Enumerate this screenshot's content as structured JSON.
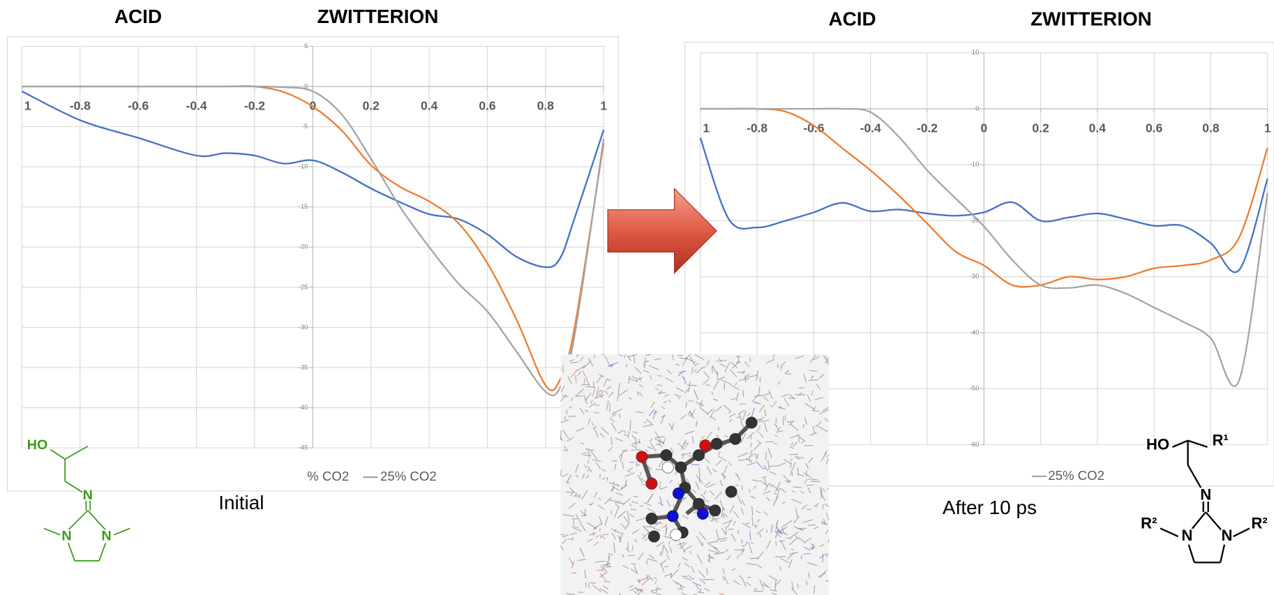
{
  "chart_data": [
    {
      "type": "line",
      "annotations": [
        "ACID",
        "ZWITTERION",
        "Initial"
      ],
      "x": [
        -1,
        -0.8,
        -0.6,
        -0.4,
        -0.3,
        -0.2,
        -0.1,
        0,
        0.1,
        0.2,
        0.3,
        0.4,
        0.5,
        0.6,
        0.7,
        0.8,
        0.85,
        0.9,
        1
      ],
      "series": [
        {
          "color": "#4472c4",
          "values": [
            -0.6,
            -4.2,
            -6.4,
            -8.6,
            -8.3,
            -8.6,
            -9.6,
            -9.2,
            -10.7,
            -12.7,
            -14.4,
            -15.9,
            -16.5,
            -18.4,
            -21.2,
            -22.5,
            -21.4,
            -16.4,
            -5.4
          ]
        },
        {
          "name": "% CO2",
          "color": "#ed7d31",
          "values": [
            0,
            0,
            0,
            0,
            0,
            0,
            -0.7,
            -2.5,
            -5.5,
            -9.8,
            -12.5,
            -14.3,
            -17,
            -22,
            -29,
            -37.2,
            -36.5,
            -30,
            -7
          ]
        },
        {
          "name": "25% CO2",
          "color": "#a5a5a5",
          "values": [
            0,
            0,
            0,
            0,
            0,
            0,
            -0.1,
            -0.6,
            -3.5,
            -9,
            -15,
            -20,
            -24.5,
            -28,
            -33,
            -38,
            -37.5,
            -31,
            -6.5
          ]
        }
      ],
      "xlim": [
        -1,
        1
      ],
      "ylim": [
        -45,
        5
      ],
      "xticks": [
        {
          "value": -1,
          "label": "1"
        },
        -0.8,
        -0.6,
        -0.4,
        -0.2,
        0,
        0.2,
        0.4,
        0.6,
        0.8,
        1
      ],
      "yticks": [
        5,
        0,
        -5,
        -10,
        -15,
        -20,
        -25,
        -30,
        -35,
        -40,
        -45
      ],
      "grid": true
    },
    {
      "type": "line",
      "annotations": [
        "ACID",
        "ZWITTERION",
        "After 10 ps"
      ],
      "x": [
        -1,
        -0.9,
        -0.8,
        -0.7,
        -0.6,
        -0.5,
        -0.4,
        -0.3,
        -0.2,
        -0.1,
        0,
        0.1,
        0.2,
        0.3,
        0.4,
        0.5,
        0.6,
        0.7,
        0.8,
        0.9,
        1
      ],
      "series": [
        {
          "color": "#4472c4",
          "values": [
            -5.2,
            -19.7,
            -21.2,
            -20,
            -18.5,
            -16.8,
            -18.3,
            -18,
            -18.7,
            -19.1,
            -18.5,
            -16.7,
            -20,
            -19.4,
            -18.7,
            -19.7,
            -20.9,
            -20.9,
            -24,
            -28.8,
            -12.5
          ]
        },
        {
          "color": "#ed7d31",
          "values": [
            0,
            0,
            0,
            -0.5,
            -3,
            -7,
            -11,
            -15.5,
            -20.5,
            -25.5,
            -28,
            -31.5,
            -31.5,
            -30,
            -30.5,
            -30,
            -28.5,
            -28,
            -27,
            -23,
            -7
          ]
        },
        {
          "name": "25% CO2",
          "color": "#a5a5a5",
          "values": [
            0,
            0,
            0,
            0,
            0,
            0,
            -0.6,
            -5,
            -11,
            -16,
            -21,
            -27,
            -31.5,
            -32,
            -31.5,
            -33,
            -35.5,
            -38,
            -41,
            -48.5,
            -15
          ]
        }
      ],
      "xlim": [
        -1,
        1
      ],
      "ylim": [
        -60,
        10
      ],
      "xticks": [
        {
          "value": -1,
          "label": "1"
        },
        -0.8,
        -0.6,
        -0.4,
        -0.2,
        0,
        0.2,
        0.4,
        0.6,
        0.8,
        1
      ],
      "yticks": [
        10,
        0,
        -10,
        -20,
        -30,
        -40,
        -50,
        -60
      ],
      "grid": true
    }
  ],
  "structures": [
    {
      "labels": [
        "HO",
        "N",
        "N",
        "N"
      ]
    },
    {
      "labels": [
        "HO",
        "R¹",
        "N",
        "R²",
        "N",
        "N",
        "R²"
      ]
    }
  ]
}
